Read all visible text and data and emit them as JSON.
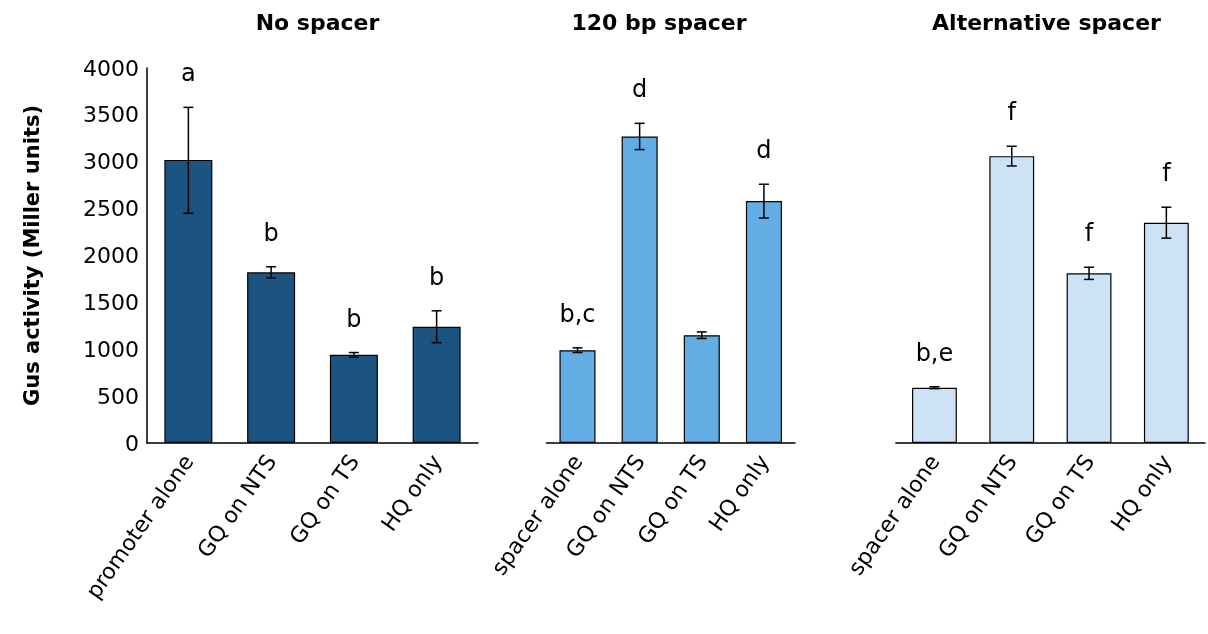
{
  "chart_data": [
    {
      "type": "bar",
      "title": "No spacer",
      "ylabel": "Gus activity (Miller units)",
      "categories": [
        "promoter alone",
        "GQ on NTS",
        "GQ on TS",
        "HQ only"
      ],
      "values": [
        3020,
        1820,
        940,
        1240
      ],
      "errors": [
        [
          2450,
          3580
        ],
        60,
        25,
        170
      ],
      "value_labels": [
        "a",
        "b",
        "b",
        "b"
      ],
      "color": "#1b5480",
      "ylim": [
        0,
        4000
      ],
      "yticks": [
        0,
        500,
        1000,
        1500,
        2000,
        2500,
        3000,
        3500,
        4000
      ],
      "grid": false
    },
    {
      "type": "bar",
      "title": "120 bp spacer",
      "categories": [
        "spacer alone",
        "GQ on NTS",
        "GQ on TS",
        "HQ only"
      ],
      "values": [
        990,
        3270,
        1150,
        2580
      ],
      "errors": [
        25,
        140,
        35,
        180
      ],
      "value_labels": [
        "b,c",
        "d",
        null,
        "d"
      ],
      "color": "#62ade3",
      "ylim": [
        0,
        4000
      ],
      "tick_labels": "x",
      "grid": false
    },
    {
      "type": "bar",
      "title": "Alternative spacer",
      "categories": [
        "spacer alone",
        "GQ on NTS",
        "GQ on TS",
        "HQ only"
      ],
      "values": [
        590,
        3060,
        1810,
        2350
      ],
      "errors": [
        10,
        105,
        65,
        165
      ],
      "value_labels": [
        "b,e",
        "f",
        "f",
        "f"
      ],
      "color": "#cde3f5",
      "ylim": [
        0,
        4000
      ],
      "tick_labels": "x",
      "grid": false
    }
  ]
}
